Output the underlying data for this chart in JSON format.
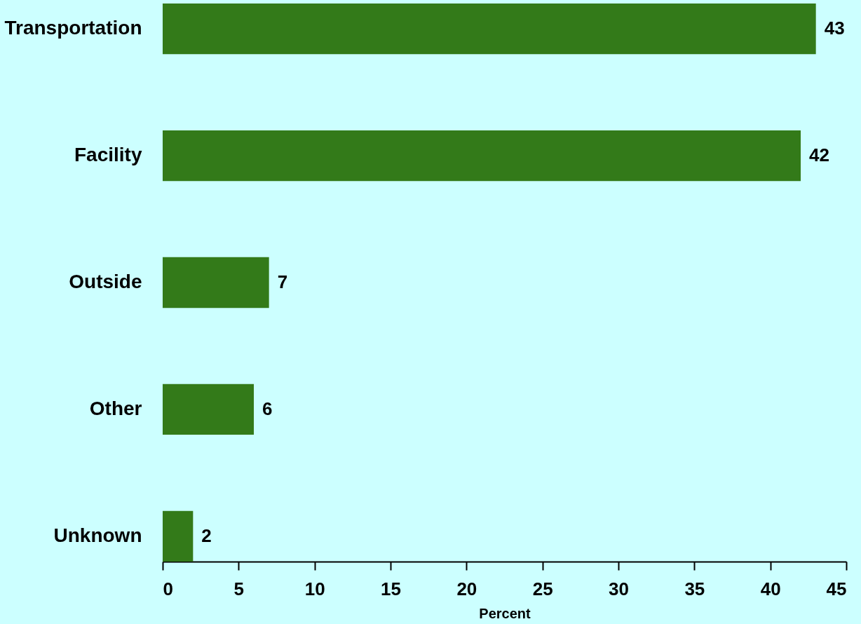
{
  "chart_data": {
    "type": "bar",
    "orientation": "horizontal",
    "xlabel": "Percent",
    "categories": [
      "Transportation",
      "Facility",
      "Outside",
      "Other",
      "Unknown"
    ],
    "values": [
      43,
      42,
      7,
      6,
      2
    ],
    "color": "#337a19",
    "xlim": [
      0,
      45
    ],
    "xticks": [
      0,
      5,
      10,
      15,
      20,
      25,
      30,
      35,
      40,
      45
    ],
    "data_labels": true
  }
}
